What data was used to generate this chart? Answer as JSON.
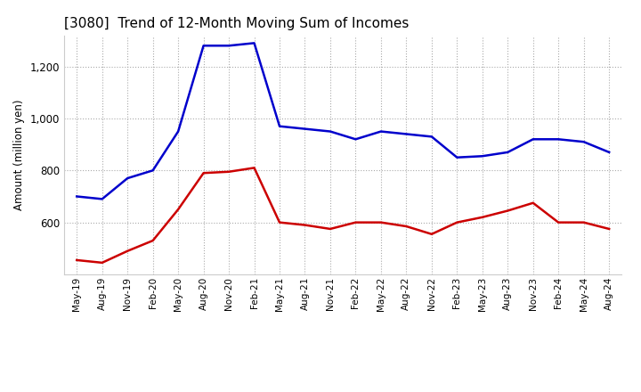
{
  "title": "[3080]  Trend of 12-Month Moving Sum of Incomes",
  "ylabel": "Amount (million yen)",
  "x_labels": [
    "May-19",
    "Aug-19",
    "Nov-19",
    "Feb-20",
    "May-20",
    "Aug-20",
    "Nov-20",
    "Feb-21",
    "May-21",
    "Aug-21",
    "Nov-21",
    "Feb-22",
    "May-22",
    "Aug-22",
    "Nov-22",
    "Feb-23",
    "May-23",
    "Aug-23",
    "Nov-23",
    "Feb-24",
    "May-24",
    "Aug-24"
  ],
  "ordinary_income": [
    700,
    690,
    770,
    800,
    950,
    1280,
    1280,
    1290,
    970,
    960,
    950,
    920,
    950,
    940,
    930,
    850,
    855,
    870,
    920,
    920,
    910,
    870
  ],
  "net_income": [
    455,
    445,
    490,
    530,
    650,
    790,
    795,
    810,
    600,
    590,
    575,
    600,
    600,
    585,
    555,
    600,
    620,
    645,
    675,
    600,
    600,
    575
  ],
  "ordinary_color": "#0000cc",
  "net_color": "#cc0000",
  "ylim_min": 400,
  "ylim_max": 1320,
  "yticks": [
    600,
    800,
    1000,
    1200
  ],
  "grid_color": "#aaaaaa",
  "background_color": "#ffffff"
}
